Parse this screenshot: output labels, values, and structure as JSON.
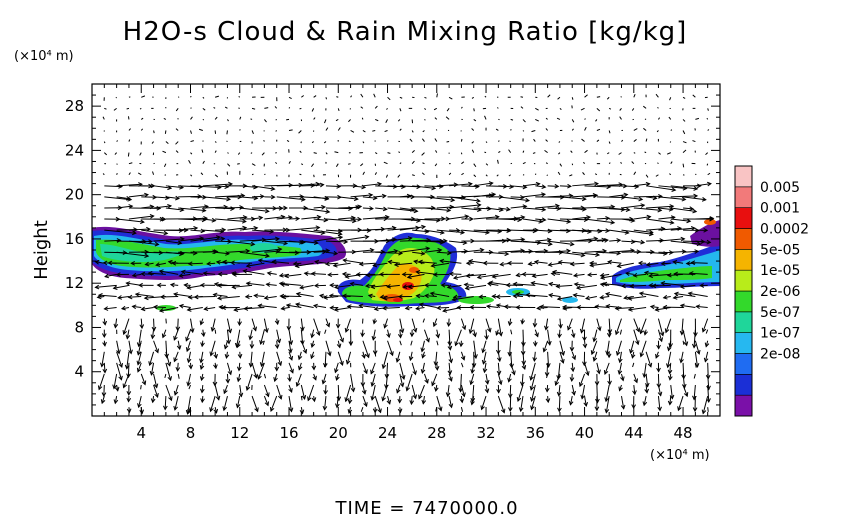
{
  "chart_data": {
    "type": "heatmap",
    "title": "H2O-s Cloud & Rain Mixing Ratio [kg/kg]",
    "ylabel": "Height",
    "x_unit": "(×10⁴ m)",
    "y_unit": "(×10⁴ m)",
    "time_label": "TIME = 7470000.0",
    "xlim": [
      0,
      51
    ],
    "ylim": [
      0,
      30
    ],
    "x_ticks": [
      "4",
      "8",
      "12",
      "16",
      "20",
      "24",
      "28",
      "32",
      "36",
      "40",
      "44",
      "48"
    ],
    "x_tick_values": [
      4,
      8,
      12,
      16,
      20,
      24,
      28,
      32,
      36,
      40,
      44,
      48
    ],
    "y_ticks": [
      "4",
      "8",
      "12",
      "16",
      "20",
      "24",
      "28"
    ],
    "y_tick_values": [
      4,
      8,
      12,
      16,
      20,
      24,
      28
    ],
    "colorbar": {
      "labels": [
        "0.005",
        "0.001",
        "0.0002",
        "5e-05",
        "1e-05",
        "2e-06",
        "5e-07",
        "1e-07",
        "2e-08"
      ],
      "colors": [
        "#7a10a8",
        "#1b2fd6",
        "#1f6cf2",
        "#26b8f0",
        "#1fd69a",
        "#33d92b",
        "#b8ec1a",
        "#f5b400",
        "#f05a00",
        "#e80f0f",
        "#f27a7a",
        "#f9c4c4"
      ]
    },
    "cloud_regions": [
      {
        "name": "left-anvil",
        "x": [
          0,
          20
        ],
        "y": [
          12.5,
          16.5
        ],
        "level": "1e-05"
      },
      {
        "name": "central-convection",
        "x": [
          20.5,
          30
        ],
        "y": [
          9.8,
          16.5
        ],
        "level": "0.0002"
      },
      {
        "name": "right-anvil",
        "x": [
          42,
          51
        ],
        "y": [
          11.8,
          17.5
        ],
        "level": "1e-05"
      }
    ]
  }
}
